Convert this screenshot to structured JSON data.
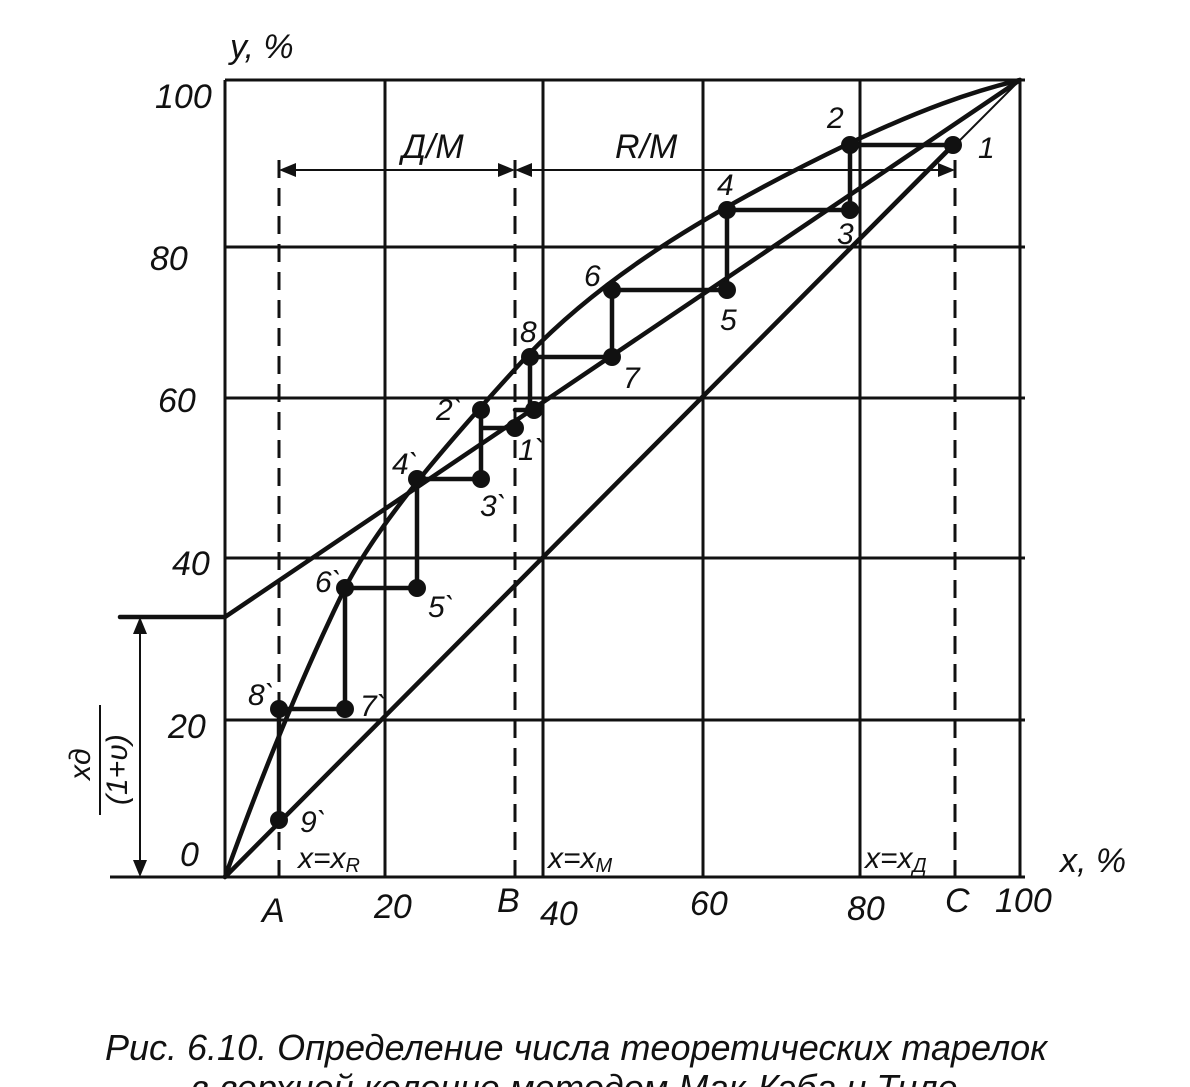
{
  "axes": {
    "y_label": "y, %",
    "x_label": "x, %",
    "y_ticks": [
      "0",
      "20",
      "40",
      "60",
      "80",
      "100"
    ],
    "x_ticks": [
      "20",
      "40",
      "60",
      "80",
      "100"
    ],
    "origin_left_label": "A",
    "b_label": "B",
    "c_label": "C"
  },
  "sections": {
    "stripping": "Д/М",
    "rectifying": "R/М"
  },
  "guides": {
    "x_r": "x=x",
    "x_r_sub": "R",
    "x_m": "x=x",
    "x_m_sub": "М",
    "x_d": "x=x",
    "x_d_sub": "Д"
  },
  "intercept_label": {
    "numerator": "xд",
    "denominator": "(1+υ)"
  },
  "points": {
    "p1": "1",
    "p2": "2",
    "p3": "3",
    "p4": "4",
    "p5": "5",
    "p6": "6",
    "p7": "7",
    "p8": "8",
    "q1": "1`",
    "q2": "2`",
    "q3": "3`",
    "q4": "4`",
    "q5": "5`",
    "q6": "6`",
    "q7": "7`",
    "q8": "8`",
    "q9": "9`"
  },
  "caption": {
    "line1": "Рис. 6.10. Определение числа теоретических тарелок",
    "line2": "в верхней колонне методом Мак-Кэба и Тиле"
  }
}
